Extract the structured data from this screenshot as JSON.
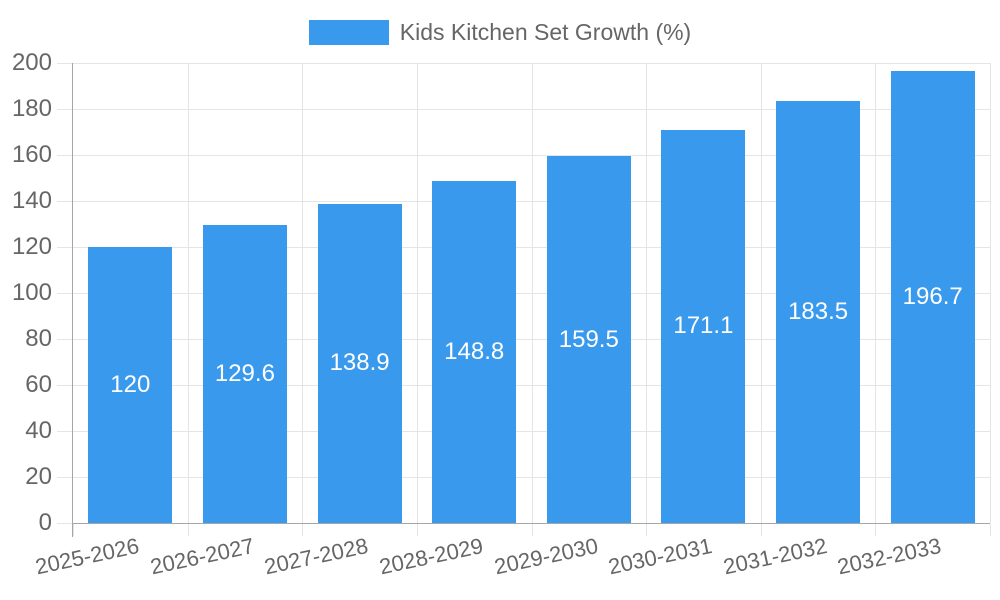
{
  "legend": {
    "label": "Kids Kitchen Set Growth (%)"
  },
  "chart_data": {
    "type": "bar",
    "title": "Kids Kitchen Set Growth (%)",
    "categories": [
      "2025-2026",
      "2026-2027",
      "2027-2028",
      "2028-2029",
      "2029-2030",
      "2030-2031",
      "2031-2032",
      "2032-2033"
    ],
    "values": [
      120,
      129.6,
      138.9,
      148.8,
      159.5,
      171.1,
      183.5,
      196.7
    ],
    "xlabel": "",
    "ylabel": "",
    "ylim": [
      0,
      200
    ],
    "ytick_step": 20,
    "grid": true,
    "legend_position": "top",
    "colors": {
      "bar": "#3999ED",
      "value_label": "#FFFFFF",
      "axis_text": "#666666",
      "axis_line": "#A6A6A6",
      "gridline": "#E5E5E5"
    }
  }
}
